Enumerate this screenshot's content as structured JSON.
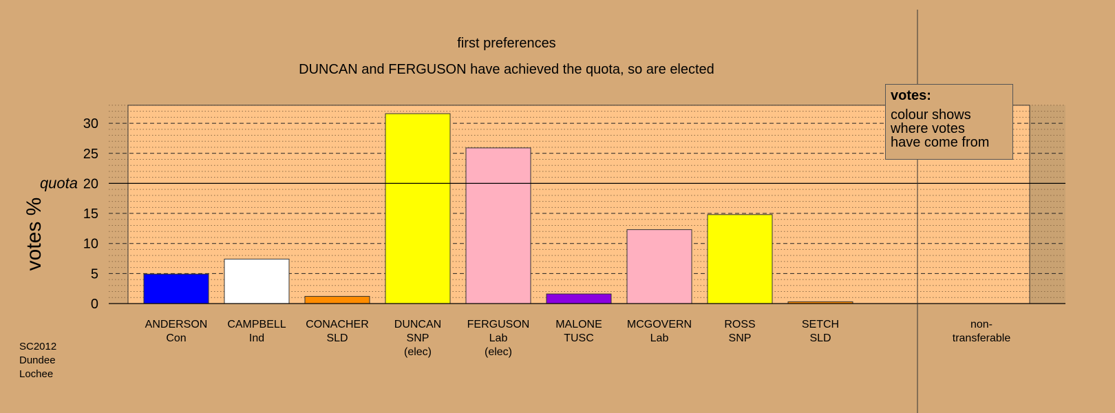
{
  "footer": "SC2012\nDundee\nLochee",
  "legend": {
    "title": "votes:",
    "body": "colour shows\nwhere votes\nhave come from"
  },
  "chart_data": {
    "type": "bar",
    "title": "first preferences",
    "subtitle": "DUNCAN and FERGUSON have achieved the quota, so are elected",
    "ylabel": "votes %",
    "ylim": [
      0,
      33
    ],
    "yticks": [
      0,
      5,
      10,
      15,
      20,
      25,
      30
    ],
    "quota": {
      "label": "quota",
      "value": 20
    },
    "categories": [
      {
        "name": "ANDERSON",
        "party": "Con",
        "note": "",
        "value": 4.9,
        "color": "#0000ff"
      },
      {
        "name": "CAMPBELL",
        "party": "Ind",
        "note": "",
        "value": 7.4,
        "color": "#ffffff"
      },
      {
        "name": "CONACHER",
        "party": "SLD",
        "note": "",
        "value": 1.2,
        "color": "#ff8c00"
      },
      {
        "name": "DUNCAN",
        "party": "SNP",
        "note": "(elec)",
        "value": 31.6,
        "color": "#ffff00"
      },
      {
        "name": "FERGUSON",
        "party": "Lab",
        "note": "(elec)",
        "value": 25.9,
        "color": "#ffb0c0"
      },
      {
        "name": "MALONE",
        "party": "TUSC",
        "note": "",
        "value": 1.6,
        "color": "#8a00e0"
      },
      {
        "name": "MCGOVERN",
        "party": "Lab",
        "note": "",
        "value": 12.3,
        "color": "#ffb0c0"
      },
      {
        "name": "ROSS",
        "party": "SNP",
        "note": "",
        "value": 14.8,
        "color": "#ffff00"
      },
      {
        "name": "SETCH",
        "party": "SLD",
        "note": "",
        "value": 0.3,
        "color": "#ff8c00"
      }
    ],
    "nontransferable": {
      "label": "non-\ntransferable",
      "value": 0
    },
    "grid": true,
    "legend_position": "top-right"
  }
}
